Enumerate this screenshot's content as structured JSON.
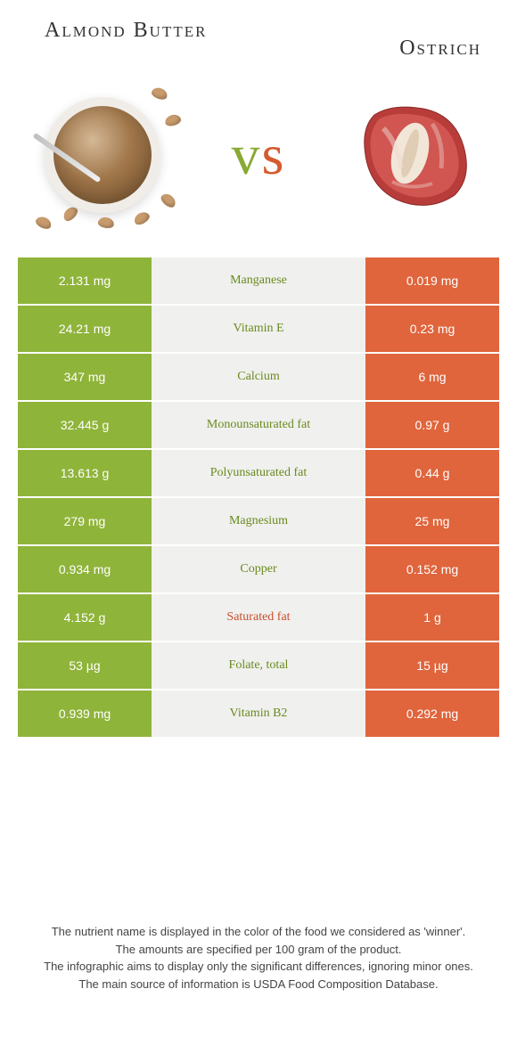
{
  "header": {
    "left_title": "Almond Butter",
    "right_title": "Ostrich",
    "vs": "vs"
  },
  "colors": {
    "left": "#8fb43a",
    "right": "#e0653c",
    "mid_bg": "#f0f0ee",
    "bad_label": "#c94f2e",
    "good_label": "#6a8a1f"
  },
  "rows": [
    {
      "left": "2.131 mg",
      "label": "Manganese",
      "right": "0.019 mg",
      "winner": "left"
    },
    {
      "left": "24.21 mg",
      "label": "Vitamin E",
      "right": "0.23 mg",
      "winner": "left"
    },
    {
      "left": "347 mg",
      "label": "Calcium",
      "right": "6 mg",
      "winner": "left"
    },
    {
      "left": "32.445 g",
      "label": "Monounsaturated fat",
      "right": "0.97 g",
      "winner": "left"
    },
    {
      "left": "13.613 g",
      "label": "Polyunsaturated fat",
      "right": "0.44 g",
      "winner": "left"
    },
    {
      "left": "279 mg",
      "label": "Magnesium",
      "right": "25 mg",
      "winner": "left"
    },
    {
      "left": "0.934 mg",
      "label": "Copper",
      "right": "0.152 mg",
      "winner": "left"
    },
    {
      "left": "4.152 g",
      "label": "Saturated fat",
      "right": "1 g",
      "winner": "right"
    },
    {
      "left": "53 µg",
      "label": "Folate, total",
      "right": "15 µg",
      "winner": "left"
    },
    {
      "left": "0.939 mg",
      "label": "Vitamin B2",
      "right": "0.292 mg",
      "winner": "left"
    }
  ],
  "footer": {
    "line1": "The nutrient name is displayed in the color of the food we considered as 'winner'.",
    "line2": "The amounts are specified per 100 gram of the product.",
    "line3": "The infographic aims to display only the significant differences, ignoring minor ones.",
    "line4": "The main source of information is USDA Food Composition Database."
  }
}
